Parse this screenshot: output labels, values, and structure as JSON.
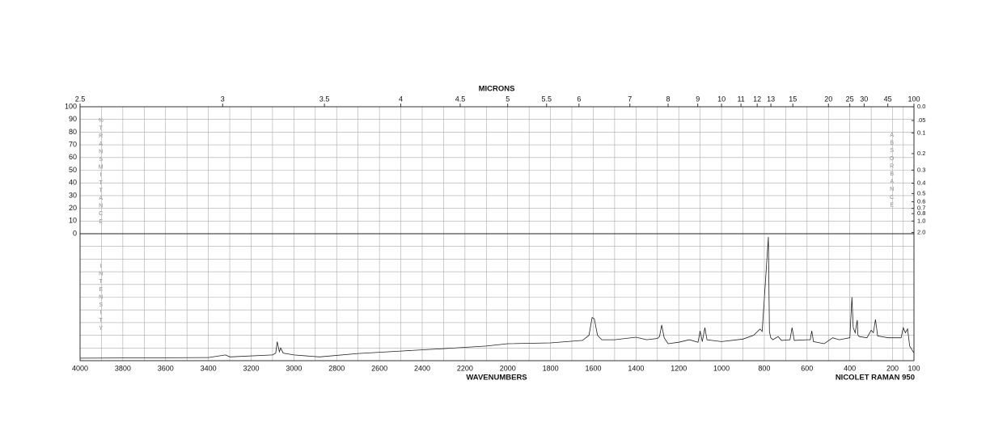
{
  "chart_data": {
    "type": "line",
    "x2label": "MICRONS",
    "xlabel": "WAVENUMBERS",
    "instrument": "NICOLET RAMAN 950",
    "ylabel": "%TRANSMITTANCE",
    "y2label": "ABSORBANCE",
    "intensity_label": "INTENSITY",
    "xlim": [
      4000,
      100
    ],
    "xticks": [
      4000,
      3800,
      3600,
      3400,
      3200,
      3000,
      2800,
      2600,
      2400,
      2200,
      2000,
      1800,
      1600,
      1400,
      1200,
      1000,
      800,
      600,
      400,
      200,
      100
    ],
    "x2ticks": [
      2.5,
      3,
      3.5,
      4,
      4.5,
      5,
      5.5,
      6,
      7,
      8,
      9,
      10,
      11,
      12,
      13,
      15,
      20,
      25,
      30,
      45,
      100
    ],
    "ylim": [
      0,
      100
    ],
    "yticks": [
      0,
      10,
      20,
      30,
      40,
      50,
      60,
      70,
      80,
      90,
      100
    ],
    "y2ticks": [
      {
        "value": 0.0,
        "label": "0.0"
      },
      {
        "value": 0.05,
        "label": ".05"
      },
      0.1,
      0.2,
      0.3,
      0.4,
      0.5,
      0.6,
      0.7,
      0.8,
      {
        "value": 1.0,
        "label": "1.0"
      },
      {
        "value": 2.0,
        "label": "2.0"
      }
    ],
    "intensity_ylim": [
      0,
      100
    ],
    "intensity_grid": [
      0,
      10,
      20,
      30,
      40,
      50,
      60,
      70,
      80,
      90,
      100
    ],
    "grid": true,
    "series": [
      {
        "name": "INTENSITY",
        "color": "#222",
        "x": [
          4000,
          3400,
          3320,
          3300,
          3100,
          3085,
          3078,
          3068,
          3062,
          3050,
          3000,
          2880,
          2700,
          2500,
          2300,
          2100,
          2000,
          1800,
          1650,
          1620,
          1605,
          1595,
          1580,
          1560,
          1500,
          1400,
          1350,
          1300,
          1290,
          1280,
          1268,
          1250,
          1200,
          1150,
          1110,
          1100,
          1090,
          1078,
          1068,
          1000,
          900,
          850,
          820,
          810,
          781,
          776,
          770,
          760,
          735,
          720,
          680,
          670,
          660,
          600,
          585,
          578,
          570,
          520,
          480,
          450,
          400,
          390,
          384,
          375,
          365,
          362,
          355,
          320,
          300,
          290,
          280,
          270,
          220,
          160,
          150,
          140,
          130,
          120,
          100
        ],
        "values": [
          2,
          2.5,
          4.5,
          3,
          4.5,
          6,
          15,
          7,
          10,
          6,
          4.5,
          3,
          5.7,
          7.6,
          9.5,
          11.5,
          13.4,
          14,
          16,
          20,
          34,
          33,
          20,
          16.5,
          16.5,
          18.5,
          16.5,
          17.5,
          19,
          28,
          18,
          13.4,
          14.5,
          16.5,
          14.5,
          23.5,
          15,
          26,
          16.5,
          15,
          17,
          20,
          25,
          23,
          97.5,
          23,
          18,
          16.5,
          19,
          16,
          16.5,
          26,
          16,
          16.5,
          16.5,
          23.5,
          15,
          13.4,
          18,
          16.5,
          18,
          50,
          26,
          22,
          32,
          20,
          19,
          18,
          24,
          22,
          32.5,
          19.5,
          18,
          18,
          26,
          22,
          25,
          11.5,
          6
        ]
      }
    ]
  }
}
